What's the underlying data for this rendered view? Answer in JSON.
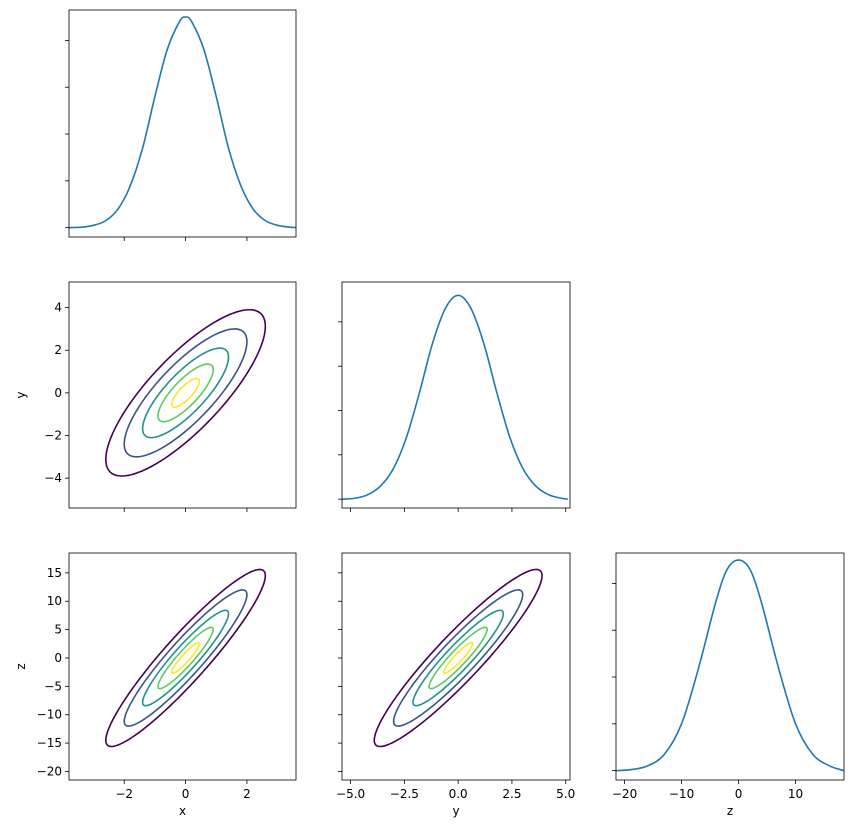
{
  "chart_data": [
    {
      "type": "line",
      "panel": "x-x",
      "title": "",
      "x": [
        -3.8,
        -3.4,
        -3.0,
        -2.6,
        -2.2,
        -1.8,
        -1.4,
        -1.0,
        -0.6,
        -0.2,
        0.0,
        0.2,
        0.6,
        1.0,
        1.4,
        1.8,
        2.2,
        2.6,
        3.0,
        3.4,
        3.8
      ],
      "values": [
        0.0,
        0.001,
        0.005,
        0.015,
        0.04,
        0.09,
        0.17,
        0.28,
        0.38,
        0.44,
        0.45,
        0.44,
        0.38,
        0.28,
        0.17,
        0.09,
        0.04,
        0.015,
        0.005,
        0.001,
        0.0
      ],
      "xlim": [
        -3.8,
        3.6
      ],
      "ylim": [
        -0.02,
        0.465
      ],
      "xticks": [
        -2,
        0,
        2
      ],
      "yticks": [
        0,
        0.1,
        0.2,
        0.3,
        0.4
      ],
      "xlabel": "",
      "ylabel": "",
      "color": "#1f77b4"
    },
    {
      "type": "line",
      "panel": "x-y contour",
      "title": "",
      "series": [
        {
          "name": "",
          "level": 2.6,
          "color": "#440154"
        },
        {
          "name": "",
          "level": 2.0,
          "color": "#3b528b"
        },
        {
          "name": "",
          "level": 1.4,
          "color": "#21918c"
        },
        {
          "name": "",
          "level": 0.9,
          "color": "#5ec962"
        },
        {
          "name": "",
          "level": 0.45,
          "color": "#fde725"
        }
      ],
      "sx": 1.0,
      "sy": 1.5,
      "rho": 0.8,
      "xlim": [
        -3.8,
        3.6
      ],
      "ylim": [
        -5.4,
        5.2
      ],
      "xticks": [
        -2,
        0,
        2
      ],
      "yticks": [
        -4,
        -2,
        0,
        2,
        4
      ],
      "ytick_labels": [
        "−4",
        "−2",
        "0",
        "2",
        "4"
      ],
      "xlabel": "",
      "ylabel": "y"
    },
    {
      "type": "line",
      "panel": "y-y",
      "title": "",
      "x": [
        -5.4,
        -4.8,
        -4.2,
        -3.6,
        -3.0,
        -2.4,
        -1.8,
        -1.2,
        -0.6,
        0.0,
        0.6,
        1.2,
        1.8,
        2.4,
        3.0,
        3.6,
        4.2,
        4.8,
        5.1
      ],
      "values": [
        0.0,
        0.002,
        0.01,
        0.03,
        0.07,
        0.14,
        0.24,
        0.35,
        0.43,
        0.46,
        0.43,
        0.35,
        0.24,
        0.14,
        0.07,
        0.03,
        0.01,
        0.002,
        0.0
      ],
      "xlim": [
        -5.4,
        5.2
      ],
      "ylim": [
        -0.02,
        0.49
      ],
      "xticks": [
        -5,
        -2.5,
        0,
        2.5,
        5
      ],
      "yticks": [
        0,
        0.1,
        0.2,
        0.3,
        0.4
      ],
      "xlabel": "",
      "ylabel": "",
      "color": "#1f77b4"
    },
    {
      "type": "line",
      "panel": "x-z contour",
      "title": "",
      "series": [
        {
          "name": "",
          "level": 2.6,
          "color": "#440154"
        },
        {
          "name": "",
          "level": 2.0,
          "color": "#3b528b"
        },
        {
          "name": "",
          "level": 1.4,
          "color": "#21918c"
        },
        {
          "name": "",
          "level": 0.9,
          "color": "#5ec962"
        },
        {
          "name": "",
          "level": 0.45,
          "color": "#fde725"
        }
      ],
      "sx": 1.0,
      "sy": 6.0,
      "rho": 0.93,
      "xlim": [
        -3.8,
        3.6
      ],
      "ylim": [
        -21.5,
        18.5
      ],
      "xticks": [
        -2,
        0,
        2
      ],
      "xtick_labels": [
        "−2",
        "0",
        "2"
      ],
      "yticks": [
        -20,
        -15,
        -10,
        -5,
        0,
        5,
        10,
        15
      ],
      "ytick_labels": [
        "−20",
        "−15",
        "−10",
        "−5",
        "0",
        "5",
        "10",
        "15"
      ],
      "xlabel": "x",
      "ylabel": "z"
    },
    {
      "type": "line",
      "panel": "y-z contour",
      "title": "",
      "series": [
        {
          "name": "",
          "level": 2.6,
          "color": "#440154"
        },
        {
          "name": "",
          "level": 2.0,
          "color": "#3b528b"
        },
        {
          "name": "",
          "level": 1.4,
          "color": "#21918c"
        },
        {
          "name": "",
          "level": 0.9,
          "color": "#5ec962"
        },
        {
          "name": "",
          "level": 0.45,
          "color": "#fde725"
        }
      ],
      "sx": 1.5,
      "sy": 6.0,
      "rho": 0.93,
      "xlim": [
        -5.4,
        5.2
      ],
      "ylim": [
        -21.5,
        18.5
      ],
      "xticks": [
        -5,
        -2.5,
        0,
        2.5,
        5
      ],
      "xtick_labels": [
        "−5.0",
        "−2.5",
        "0.0",
        "2.5",
        "5.0"
      ],
      "yticks": [
        -20,
        -15,
        -10,
        -5,
        0,
        5,
        10,
        15
      ],
      "xlabel": "y",
      "ylabel": ""
    },
    {
      "type": "line",
      "panel": "z-z",
      "title": "",
      "x": [
        -21.5,
        -19,
        -16,
        -13,
        -10,
        -7,
        -4,
        -2,
        0,
        2,
        4,
        7,
        10,
        13,
        16,
        18.5
      ],
      "values": [
        0.0,
        0.002,
        0.01,
        0.035,
        0.1,
        0.22,
        0.36,
        0.43,
        0.45,
        0.43,
        0.36,
        0.22,
        0.1,
        0.035,
        0.01,
        0.0
      ],
      "xlim": [
        -21.5,
        18.5
      ],
      "ylim": [
        -0.02,
        0.465
      ],
      "xticks": [
        -20,
        -10,
        0,
        10
      ],
      "xtick_labels": [
        "−20",
        "−10",
        "0",
        "10"
      ],
      "yticks": [
        0,
        0.1,
        0.2,
        0.3,
        0.4
      ],
      "xlabel": "z",
      "ylabel": "",
      "color": "#1f77b4"
    }
  ]
}
